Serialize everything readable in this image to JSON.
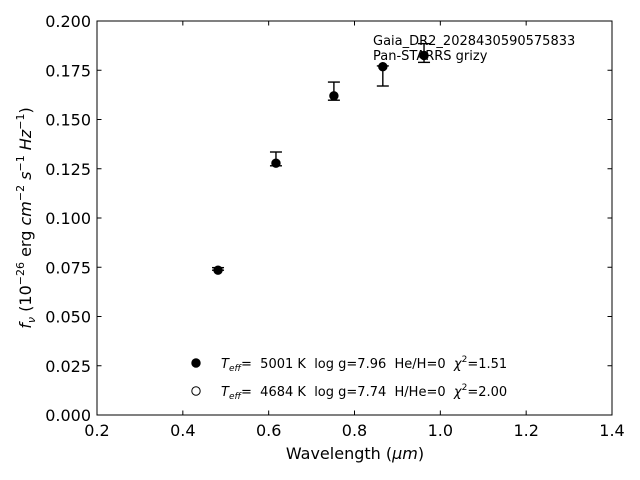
{
  "chart_data": {
    "type": "scatter",
    "xlabel_main": "Wavelength (",
    "xlabel_unit": "μm",
    "xlabel_close": ")",
    "ylabel": {
      "f": "f",
      "nu": "ν",
      "open": " (10",
      "exp1": "−26",
      "erg": " erg ",
      "cm": "cm",
      "exp2": "−2",
      "s": " s",
      "exp3": "−1",
      "hz": " Hz",
      "exp4": "−1",
      "close": ")"
    },
    "xlim": [
      0.2,
      1.4
    ],
    "ylim": [
      0.0,
      0.2
    ],
    "xticks": [
      0.2,
      0.4,
      0.6,
      0.8,
      1.0,
      1.2,
      1.4
    ],
    "xtick_labels": [
      "0.2",
      "0.4",
      "0.6",
      "0.8",
      "1.0",
      "1.2",
      "1.4"
    ],
    "yticks": [
      0.0,
      0.025,
      0.05,
      0.075,
      0.1,
      0.125,
      0.15,
      0.175,
      0.2
    ],
    "ytick_labels": [
      "0.000",
      "0.025",
      "0.050",
      "0.075",
      "0.100",
      "0.125",
      "0.150",
      "0.175",
      "0.200"
    ],
    "grid": false,
    "annotations": [
      "Gaia_DR2_2028430590575833",
      "Pan-STARRS grizy"
    ],
    "points": [
      {
        "x": 0.482,
        "y": 0.0735,
        "err_low": 0.0735,
        "err_high": 0.0748
      },
      {
        "x": 0.617,
        "y": 0.1278,
        "err_low": 0.1265,
        "err_high": 0.1335
      },
      {
        "x": 0.752,
        "y": 0.162,
        "err_low": 0.1598,
        "err_high": 0.169
      },
      {
        "x": 0.866,
        "y": 0.1768,
        "err_low": 0.167,
        "err_high": 0.1772
      },
      {
        "x": 0.962,
        "y": 0.1825,
        "err_low": 0.179,
        "err_high": 0.1885
      }
    ],
    "legend": {
      "placement": "lower-center",
      "entries": [
        {
          "marker": "filled-circle",
          "teff": "5001",
          "logg": "7.96",
          "comp": "He/H=0",
          "chi2": "1.51"
        },
        {
          "marker": "open-circle",
          "teff": "4684",
          "logg": "7.74",
          "comp": "H/He=0",
          "chi2": "2.00"
        }
      ],
      "teff_label": "T",
      "teff_sub": "eff",
      "eq": "=  ",
      "unit": " K  ",
      "logg_label": "log g=",
      "chi_label": "χ",
      "chi_sup": "2",
      "chi_eq": "="
    }
  }
}
